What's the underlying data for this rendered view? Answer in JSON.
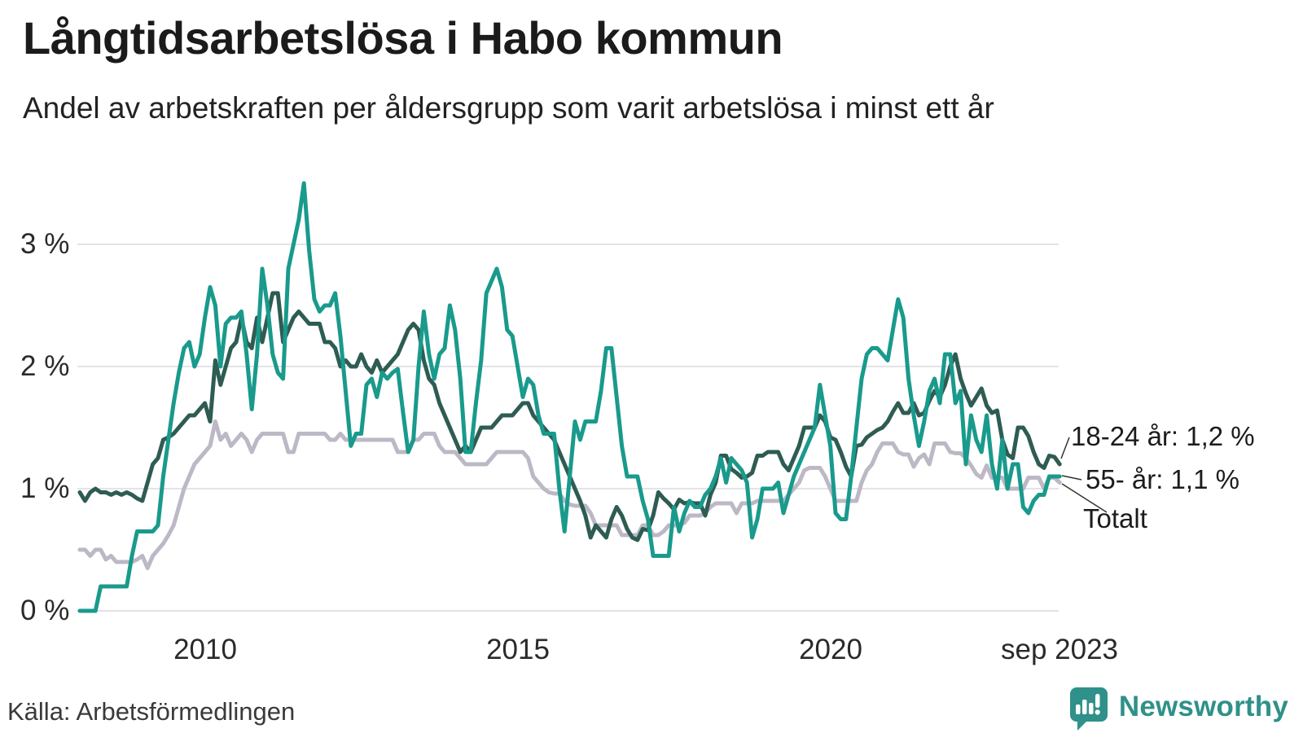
{
  "header": {
    "title": "Långtidsarbetslösa i Habo kommun",
    "subtitle": "Andel av arbetskraften per åldersgrupp som varit arbetslösa i minst ett år"
  },
  "chart_data": {
    "type": "line",
    "title": "Långtidsarbetslösa i Habo kommun",
    "x_start": "2008-01",
    "x_end": "2023-09",
    "frequency": "monthly",
    "ylim": [
      0,
      3.55
    ],
    "grid": "horizontal",
    "y_ticks": [
      {
        "value": 0,
        "label": "0 %"
      },
      {
        "value": 1,
        "label": "1 %"
      },
      {
        "value": 2,
        "label": "2 %"
      },
      {
        "value": 3,
        "label": "3 %"
      }
    ],
    "x_ticks": [
      {
        "year": 2010.0,
        "label": "2010"
      },
      {
        "year": 2015.0,
        "label": "2015"
      },
      {
        "year": 2020.0,
        "label": "2020"
      },
      {
        "year": 2023.75,
        "label": "sep 2023"
      }
    ],
    "series": [
      {
        "name": "Totalt",
        "color": "#bcb8c5",
        "last_value": 1.05,
        "values": [
          0.5,
          0.5,
          0.45,
          0.5,
          0.5,
          0.42,
          0.45,
          0.4,
          0.4,
          0.4,
          0.4,
          0.42,
          0.45,
          0.35,
          0.45,
          0.5,
          0.55,
          0.62,
          0.7,
          0.85,
          1.0,
          1.1,
          1.2,
          1.25,
          1.3,
          1.35,
          1.55,
          1.4,
          1.45,
          1.35,
          1.4,
          1.45,
          1.4,
          1.3,
          1.4,
          1.45,
          1.45,
          1.45,
          1.45,
          1.45,
          1.3,
          1.3,
          1.45,
          1.45,
          1.45,
          1.45,
          1.45,
          1.45,
          1.4,
          1.4,
          1.45,
          1.4,
          1.4,
          1.4,
          1.4,
          1.4,
          1.4,
          1.4,
          1.4,
          1.4,
          1.4,
          1.3,
          1.3,
          1.3,
          1.4,
          1.4,
          1.45,
          1.45,
          1.45,
          1.35,
          1.3,
          1.3,
          1.3,
          1.25,
          1.2,
          1.2,
          1.2,
          1.2,
          1.2,
          1.25,
          1.3,
          1.3,
          1.3,
          1.3,
          1.3,
          1.3,
          1.25,
          1.1,
          1.05,
          1.0,
          0.97,
          0.96,
          0.96,
          0.9,
          0.87,
          0.86,
          0.86,
          0.86,
          0.8,
          0.7,
          0.7,
          0.7,
          0.7,
          0.7,
          0.62,
          0.62,
          0.62,
          0.62,
          0.7,
          0.7,
          0.62,
          0.62,
          0.65,
          0.7,
          0.7,
          0.7,
          0.72,
          0.78,
          0.78,
          0.78,
          0.8,
          0.85,
          0.88,
          0.88,
          0.88,
          0.88,
          0.8,
          0.88,
          0.88,
          0.88,
          0.9,
          0.9,
          0.9,
          0.9,
          0.9,
          0.9,
          0.95,
          1.0,
          1.05,
          1.15,
          1.17,
          1.17,
          1.17,
          1.1,
          1.0,
          0.9,
          0.9,
          0.9,
          0.9,
          0.9,
          1.05,
          1.15,
          1.2,
          1.3,
          1.37,
          1.37,
          1.37,
          1.3,
          1.28,
          1.28,
          1.18,
          1.25,
          1.28,
          1.2,
          1.37,
          1.37,
          1.37,
          1.3,
          1.29,
          1.29,
          1.25,
          1.19,
          1.12,
          1.09,
          1.19,
          1.09,
          1.09,
          1.09,
          1.0,
          1.0,
          1.0,
          1.0,
          1.09,
          1.09,
          1.09,
          1.0,
          1.09,
          1.09,
          1.05
        ]
      },
      {
        "name": "18-24 år",
        "color": "#2e5c53",
        "last_value": 1.2,
        "values": [
          0.97,
          0.9,
          0.97,
          1.0,
          0.97,
          0.97,
          0.95,
          0.97,
          0.95,
          0.97,
          0.95,
          0.92,
          0.9,
          1.05,
          1.2,
          1.25,
          1.4,
          1.42,
          1.45,
          1.5,
          1.55,
          1.6,
          1.6,
          1.65,
          1.7,
          1.55,
          2.05,
          1.85,
          2.0,
          2.15,
          2.2,
          2.4,
          2.2,
          2.15,
          2.4,
          2.2,
          2.4,
          2.6,
          2.6,
          2.2,
          2.3,
          2.4,
          2.45,
          2.4,
          2.35,
          2.35,
          2.35,
          2.2,
          2.2,
          2.15,
          2.0,
          2.05,
          2.0,
          2.0,
          2.1,
          2.0,
          1.95,
          2.05,
          1.95,
          2.0,
          2.05,
          2.1,
          2.2,
          2.3,
          2.35,
          2.3,
          2.05,
          1.9,
          1.85,
          1.7,
          1.6,
          1.5,
          1.4,
          1.3,
          1.35,
          1.3,
          1.4,
          1.5,
          1.5,
          1.5,
          1.55,
          1.6,
          1.6,
          1.6,
          1.65,
          1.7,
          1.7,
          1.6,
          1.55,
          1.5,
          1.45,
          1.4,
          1.3,
          1.2,
          1.1,
          1.0,
          0.9,
          0.78,
          0.6,
          0.7,
          0.65,
          0.6,
          0.75,
          0.85,
          0.78,
          0.67,
          0.6,
          0.58,
          0.67,
          0.66,
          0.78,
          0.97,
          0.92,
          0.88,
          0.83,
          0.91,
          0.88,
          0.89,
          0.88,
          0.88,
          0.78,
          0.95,
          1.05,
          1.27,
          1.27,
          1.16,
          1.13,
          1.09,
          1.1,
          1.13,
          1.27,
          1.27,
          1.3,
          1.3,
          1.3,
          1.2,
          1.15,
          1.25,
          1.35,
          1.5,
          1.5,
          1.5,
          1.6,
          1.55,
          1.42,
          1.4,
          1.3,
          1.18,
          1.1,
          1.35,
          1.36,
          1.42,
          1.45,
          1.48,
          1.5,
          1.55,
          1.63,
          1.7,
          1.62,
          1.62,
          1.7,
          1.6,
          1.62,
          1.72,
          1.8,
          1.75,
          1.85,
          2.0,
          2.1,
          1.9,
          1.78,
          1.68,
          1.75,
          1.82,
          1.68,
          1.62,
          1.64,
          1.4,
          1.28,
          1.25,
          1.5,
          1.5,
          1.43,
          1.3,
          1.2,
          1.17,
          1.27,
          1.26,
          1.2
        ]
      },
      {
        "name": "55- år",
        "color": "#199a8c",
        "last_value": 1.1,
        "values": [
          0,
          0,
          0,
          0,
          0.2,
          0.2,
          0.2,
          0.2,
          0.2,
          0.2,
          0.45,
          0.65,
          0.65,
          0.65,
          0.65,
          0.7,
          1.1,
          1.4,
          1.7,
          1.95,
          2.15,
          2.2,
          2.0,
          2.1,
          2.4,
          2.65,
          2.5,
          2.0,
          2.35,
          2.4,
          2.4,
          2.45,
          2.1,
          1.65,
          2.1,
          2.8,
          2.5,
          2.1,
          1.95,
          1.9,
          2.8,
          3.0,
          3.2,
          3.5,
          2.95,
          2.55,
          2.45,
          2.5,
          2.5,
          2.6,
          2.25,
          1.8,
          1.35,
          1.45,
          1.45,
          1.85,
          1.9,
          1.75,
          1.95,
          1.9,
          1.95,
          1.98,
          1.63,
          1.3,
          1.4,
          2.0,
          2.45,
          2.1,
          1.9,
          2.1,
          2.15,
          2.5,
          2.3,
          1.9,
          1.3,
          1.3,
          1.7,
          2.05,
          2.6,
          2.7,
          2.8,
          2.65,
          2.3,
          2.25,
          2.0,
          1.75,
          1.9,
          1.85,
          1.6,
          1.45,
          1.45,
          1.45,
          1.0,
          0.65,
          1.1,
          1.55,
          1.4,
          1.55,
          1.55,
          1.55,
          1.8,
          2.15,
          2.15,
          1.75,
          1.35,
          1.1,
          1.1,
          1.1,
          0.9,
          0.75,
          0.45,
          0.45,
          0.45,
          0.45,
          0.85,
          0.65,
          0.8,
          0.9,
          0.85,
          0.85,
          0.95,
          1.0,
          1.1,
          1.25,
          1.05,
          1.25,
          1.2,
          1.15,
          1.05,
          0.6,
          0.75,
          1.0,
          1.0,
          1.0,
          1.05,
          0.8,
          0.95,
          1.1,
          1.2,
          1.3,
          1.4,
          1.5,
          1.85,
          1.6,
          1.35,
          0.8,
          0.75,
          0.75,
          1.1,
          1.5,
          1.9,
          2.1,
          2.15,
          2.15,
          2.1,
          2.05,
          2.3,
          2.55,
          2.4,
          1.9,
          1.6,
          1.35,
          1.55,
          1.8,
          1.9,
          1.7,
          2.1,
          2.1,
          1.7,
          1.8,
          1.2,
          1.6,
          1.4,
          1.3,
          1.6,
          1.2,
          1.0,
          1.4,
          1.0,
          1.2,
          1.2,
          0.85,
          0.8,
          0.9,
          0.95,
          0.95,
          1.1,
          1.1,
          1.1
        ]
      }
    ],
    "annotations": [
      {
        "text": "18-24 år: 1,2 %"
      },
      {
        "text": "55- år: 1,1 %"
      },
      {
        "text": "Totalt"
      }
    ],
    "legend_position": "end-of-line-labels"
  },
  "footer": {
    "source": "Källa: Arbetsförmedlingen",
    "brand": "Newsworthy"
  },
  "colors": {
    "series_18_24": "#2e5c53",
    "series_55": "#199a8c",
    "series_total": "#bcb8c5",
    "gridline": "#e3e3e9",
    "brand_teal": "#2f9189"
  }
}
